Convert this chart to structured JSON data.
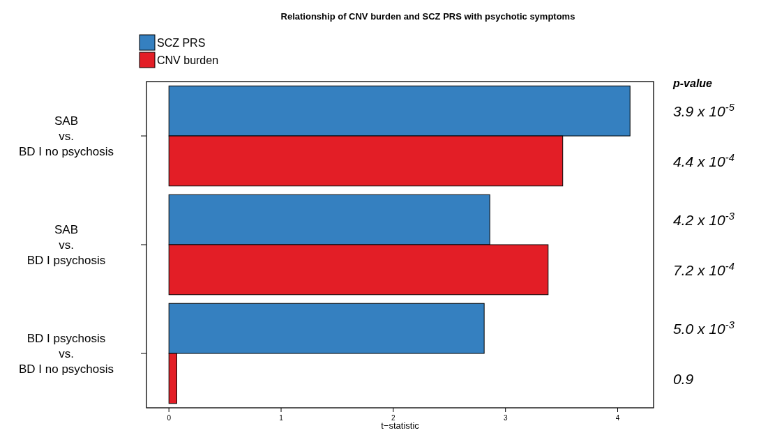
{
  "chart_data": {
    "type": "bar",
    "orientation": "horizontal",
    "title": "Relationship of CNV burden and SCZ PRS with psychotic symptoms",
    "categories": [
      "SAB\nvs.\nBD I no psychosis",
      "SAB\nvs.\nBD I psychosis",
      "BD I psychosis\nvs.\nBD I no psychosis"
    ],
    "series": [
      {
        "name": "SCZ PRS",
        "color": "#3580c0",
        "values": [
          4.11,
          2.86,
          2.81
        ]
      },
      {
        "name": "CNV burden",
        "color": "#e31e26",
        "values": [
          3.51,
          3.38,
          0.07
        ]
      }
    ],
    "xlim": [
      -0.2,
      4.32
    ],
    "xticks": [
      0,
      1,
      2,
      3,
      4
    ],
    "xlabel": "t−statistic",
    "legend": "top left",
    "annotations": [
      "p-value",
      "3.9 x 10$^{-5}$",
      "4.4 x 10$^{-4}$",
      "4.2 x 10$^{-3}$",
      "7.2 x 10$^{-4}$",
      "5.0 x 10$^{-3}$",
      "0.9"
    ]
  }
}
